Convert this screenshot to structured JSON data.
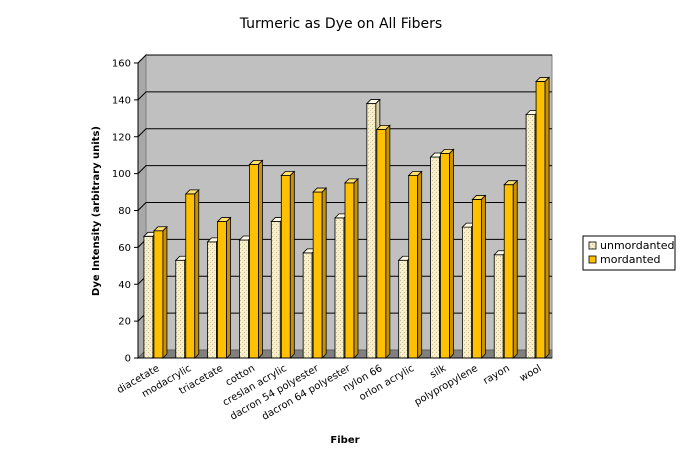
{
  "chart_data": {
    "type": "bar",
    "title": "Turmeric as Dye on All Fibers",
    "xlabel": "Fiber",
    "ylabel": "Dye Intensity (arbitrary units)",
    "ylim": [
      0,
      160
    ],
    "yticks": [
      0,
      20,
      40,
      60,
      80,
      100,
      120,
      140,
      160
    ],
    "grid": true,
    "legend_position": "right",
    "categories": [
      "diacetate",
      "modacrylic",
      "triacetate",
      "cotton",
      "creslan acrylic",
      "dacron 54 polyester",
      "dacron 64 polyester",
      "nylon 66",
      "orlon acrylic",
      "silk",
      "polypropylene",
      "rayon",
      "wool"
    ],
    "series": [
      {
        "name": "unmordanted",
        "color": "#f5ecc4",
        "values": [
          66,
          53,
          63,
          64,
          74,
          57,
          76,
          138,
          53,
          109,
          71,
          56,
          132
        ]
      },
      {
        "name": "mordanted",
        "color": "#ffc000",
        "values": [
          69,
          89,
          74,
          105,
          99,
          90,
          95,
          124,
          99,
          111,
          86,
          94,
          150
        ]
      }
    ]
  }
}
